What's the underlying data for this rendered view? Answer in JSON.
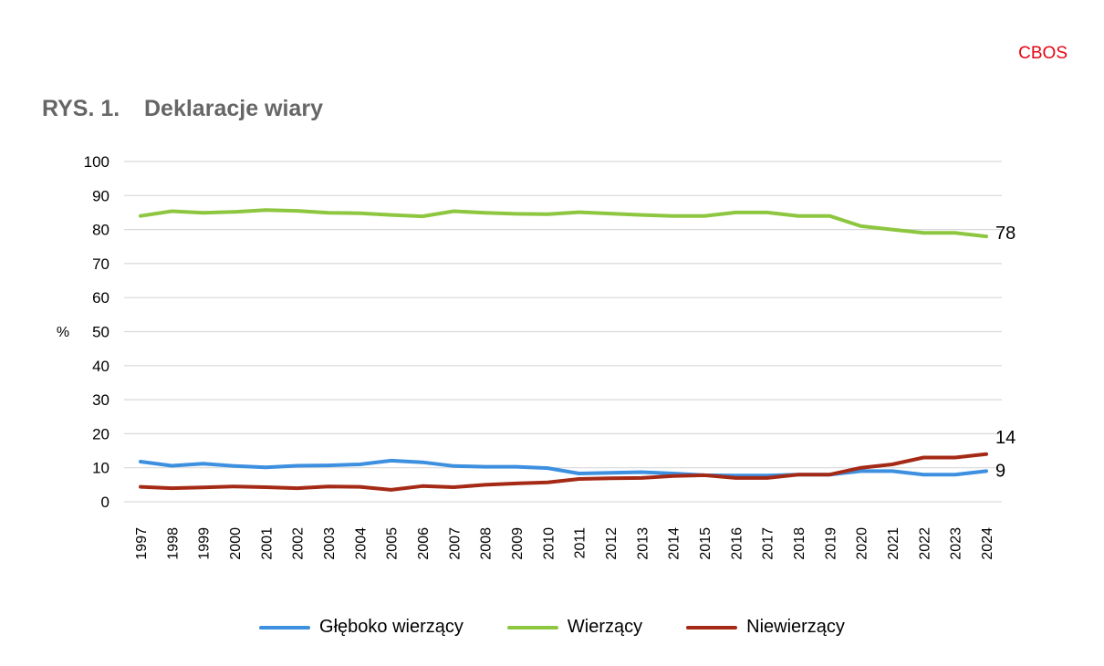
{
  "header": {
    "brand": "CBOS",
    "figure_label": "RYS. 1.",
    "figure_title": "Deklaracje wiary"
  },
  "chart_data": {
    "type": "line",
    "ylabel": "%",
    "ylim": [
      0,
      100
    ],
    "yticks": [
      0,
      10,
      20,
      30,
      40,
      50,
      60,
      70,
      80,
      90,
      100
    ],
    "grid": true,
    "legend_position": "bottom",
    "x": [
      "1997",
      "1998",
      "1999",
      "2000",
      "2001",
      "2002",
      "2003",
      "2004",
      "2005",
      "2006",
      "2007",
      "2008",
      "2009",
      "2010",
      "2011",
      "2012",
      "2013",
      "2014",
      "2015",
      "2016",
      "2017",
      "2018",
      "2019",
      "2020",
      "2021",
      "2022",
      "2023",
      "2024"
    ],
    "series": [
      {
        "name": "Głęboko wierzący",
        "color": "#3d8fe0",
        "values": [
          11.8,
          10.6,
          11.2,
          10.5,
          10.1,
          10.6,
          10.7,
          11.0,
          12.1,
          11.6,
          10.5,
          10.3,
          10.3,
          9.9,
          8.3,
          8.5,
          8.7,
          8.3,
          7.8,
          7.7,
          7.7,
          8.0,
          8.0,
          9.0,
          9.0,
          8.0,
          8.0,
          9.0
        ],
        "end_label": "9"
      },
      {
        "name": "Wierzący",
        "color": "#8dc63f",
        "values": [
          84.0,
          85.4,
          84.9,
          85.2,
          85.7,
          85.5,
          84.9,
          84.8,
          84.3,
          83.9,
          85.4,
          84.9,
          84.6,
          84.5,
          85.1,
          84.7,
          84.3,
          84.0,
          84.0,
          85.0,
          85.0,
          84.0,
          84.0,
          81.0,
          80.0,
          79.0,
          79.0,
          78.0
        ],
        "end_label": "78"
      },
      {
        "name": "Niewierzący",
        "color": "#a52a16",
        "values": [
          4.4,
          4.0,
          4.2,
          4.5,
          4.3,
          4.0,
          4.5,
          4.4,
          3.5,
          4.6,
          4.3,
          5.0,
          5.4,
          5.7,
          6.7,
          6.9,
          7.0,
          7.6,
          7.8,
          7.0,
          7.0,
          8.0,
          8.0,
          10.0,
          11.0,
          13.0,
          13.0,
          14.0
        ],
        "end_label": "14"
      }
    ]
  }
}
